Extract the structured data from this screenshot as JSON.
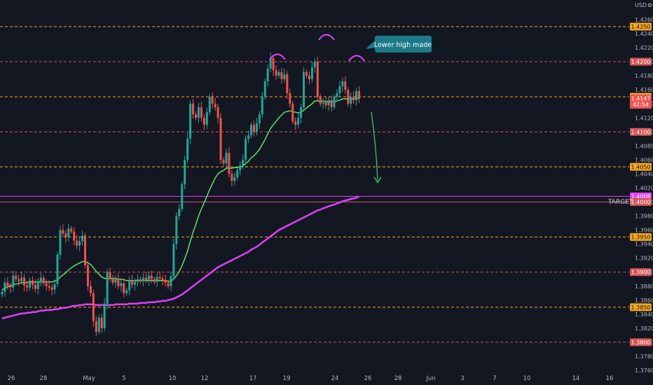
{
  "colors": {
    "background": "#131722",
    "bull": "#26a69a",
    "bear": "#ef5350",
    "ma_fast": "#5ce36b",
    "ma_slow": "#e040fb",
    "orange_level": "#f5a623",
    "red_level": "#d35656",
    "arrow": "#45d16a",
    "callout": "#1b7a88"
  },
  "axis": {
    "currency": "USD",
    "y_ticks": [
      "1.4260",
      "1.4240",
      "1.4220",
      "1.4200",
      "1.4180",
      "1.4160",
      "1.4140",
      "1.4120",
      "1.4100",
      "1.4080",
      "1.4060",
      "1.4040",
      "1.4020",
      "1.4000",
      "1.3980",
      "1.3960",
      "1.3940",
      "1.3920",
      "1.3900",
      "1.3880",
      "1.3860",
      "1.3840",
      "1.3820",
      "1.3800",
      "1.3780",
      "1.3760"
    ],
    "x_ticks": [
      "26",
      "28",
      "May",
      "5",
      "10",
      "12",
      "17",
      "19",
      "24",
      "26",
      "28",
      "Jun",
      "3",
      "7",
      "10",
      "14",
      "16"
    ]
  },
  "chart_data": {
    "type": "line",
    "title": "",
    "xlabel": "",
    "ylabel": "",
    "ylim": [
      1.3752,
      1.4272
    ],
    "symbol_currency": "USD",
    "horizontal_levels": [
      {
        "value": 1.425,
        "label": "1.4250",
        "color": "#f5a623",
        "style": "dashed"
      },
      {
        "value": 1.42,
        "label": "1.4200",
        "color": "#d35656",
        "style": "dashed"
      },
      {
        "value": 1.415,
        "label": "1.4150",
        "color": "#f5a623",
        "style": "dashed"
      },
      {
        "value": 1.41,
        "label": "1.4100",
        "color": "#d35656",
        "style": "dashed"
      },
      {
        "value": 1.405,
        "label": "1.4050",
        "color": "#f5a623",
        "style": "dashed"
      },
      {
        "value": 1.4008,
        "label": "1.4008",
        "color": "#e040fb",
        "style": "solid"
      },
      {
        "value": 1.4,
        "label": "1.4000",
        "color": "#d35656",
        "style": "solid"
      },
      {
        "value": 1.395,
        "label": "1.3950",
        "color": "#f5a623",
        "style": "dashed"
      },
      {
        "value": 1.39,
        "label": "1.3900",
        "color": "#d35656",
        "style": "dashed"
      },
      {
        "value": 1.385,
        "label": "1.3850",
        "color": "#f5a623",
        "style": "dashed"
      },
      {
        "value": 1.38,
        "label": "1.3800",
        "color": "#d35656",
        "style": "dashed"
      }
    ],
    "current_price": {
      "value": "1.4147",
      "countdown": "42:54"
    },
    "target_label": "TARGET",
    "callout_text": "Lower high made",
    "candles_close": [
      1.3872,
      1.3885,
      1.388,
      1.3878,
      1.3895,
      1.389,
      1.3887,
      1.3892,
      1.3881,
      1.3878,
      1.3888,
      1.3882,
      1.3876,
      1.3886,
      1.3892,
      1.3884,
      1.388,
      1.3878,
      1.3875,
      1.3883,
      1.3925,
      1.396,
      1.3955,
      1.395,
      1.3962,
      1.3958,
      1.3945,
      1.3938,
      1.3944,
      1.3952,
      1.391,
      1.388,
      1.387,
      1.383,
      1.3815,
      1.3835,
      1.382,
      1.3855,
      1.39,
      1.3892,
      1.3885,
      1.389,
      1.388,
      1.3884,
      1.387,
      1.3874,
      1.3888,
      1.3882,
      1.3886,
      1.389,
      1.3887,
      1.3892,
      1.3889,
      1.3895,
      1.389,
      1.3886,
      1.3893,
      1.3891,
      1.3889,
      1.3885,
      1.388,
      1.3894,
      1.394,
      1.398,
      1.399,
      1.4025,
      1.406,
      1.409,
      1.414,
      1.4125,
      1.412,
      1.4135,
      1.412,
      1.411,
      1.4128,
      1.415,
      1.414,
      1.4135,
      1.412,
      1.406,
      1.4055,
      1.407,
      1.404,
      1.403,
      1.4035,
      1.4045,
      1.4052,
      1.406,
      1.409,
      1.4095,
      1.411,
      1.41,
      1.4112,
      1.4125,
      1.415,
      1.4172,
      1.419,
      1.4205,
      1.4188,
      1.418,
      1.4185,
      1.4175,
      1.4182,
      1.4155,
      1.414,
      1.4115,
      1.411,
      1.412,
      1.4135,
      1.4185,
      1.418,
      1.4175,
      1.4192,
      1.42,
      1.415,
      1.414,
      1.4142,
      1.4138,
      1.4145,
      1.4135,
      1.415,
      1.4155,
      1.4165,
      1.4172,
      1.416,
      1.414,
      1.415,
      1.4145,
      1.4158,
      1.4147
    ],
    "series": [
      {
        "values": [
          1.3875,
          1.3877,
          1.3879,
          1.3881,
          1.3882,
          1.3883,
          1.3884,
          1.3885,
          1.3885,
          1.3885,
          1.3886,
          1.3886,
          1.3886,
          1.3886,
          1.3886,
          1.3886,
          1.3886,
          1.3886,
          1.3886,
          1.3887,
          1.3889,
          1.3893,
          1.3896,
          1.3899,
          1.3903,
          1.3906,
          1.3909,
          1.3911,
          1.3913,
          1.3915,
          1.3915,
          1.3913,
          1.3911,
          1.3906,
          1.3901,
          1.3897,
          1.3893,
          1.3891,
          1.3891,
          1.3891,
          1.3891,
          1.3891,
          1.389,
          1.389,
          1.3889,
          1.3888,
          1.3888,
          1.3888,
          1.3888,
          1.3888,
          1.3888,
          1.3888,
          1.3888,
          1.3888,
          1.3888,
          1.3888,
          1.3888,
          1.3888,
          1.3888,
          1.3888,
          1.3887,
          1.3887,
          1.389,
          1.3895,
          1.3901,
          1.3909,
          1.3919,
          1.393,
          1.3944,
          1.3957,
          1.3968,
          1.398,
          1.399,
          1.3999,
          1.4008,
          1.4018,
          1.4026,
          1.4034,
          1.404,
          1.4043,
          1.4045,
          1.4048,
          1.4048,
          1.4048,
          1.4049,
          1.4049,
          1.405,
          1.4051,
          1.4055,
          1.4058,
          1.4063,
          1.4066,
          1.407,
          1.4075,
          1.4082,
          1.4089,
          1.4097,
          1.4105,
          1.411,
          1.4115,
          1.412,
          1.4124,
          1.4128,
          1.4129,
          1.413,
          1.4129,
          1.4128,
          1.4127,
          1.4128,
          1.4131,
          1.4134,
          1.4137,
          1.414,
          1.4144,
          1.4144,
          1.4144,
          1.4144,
          1.4143,
          1.4143,
          1.4143,
          1.4143,
          1.4144,
          1.4145,
          1.4147,
          1.4147,
          1.4147,
          1.4147,
          1.4147,
          1.4148,
          1.4148
        ]
      },
      {
        "values": [
          1.3834,
          1.3835,
          1.3836,
          1.3837,
          1.3838,
          1.3839,
          1.384,
          1.3841,
          1.3841,
          1.3842,
          1.3842,
          1.3843,
          1.3843,
          1.3844,
          1.3845,
          1.3845,
          1.3846,
          1.3846,
          1.3846,
          1.3847,
          1.3847,
          1.3848,
          1.3849,
          1.3849,
          1.385,
          1.3851,
          1.3852,
          1.3852,
          1.3853,
          1.3853,
          1.3854,
          1.3854,
          1.3854,
          1.3854,
          1.3853,
          1.3853,
          1.3853,
          1.3853,
          1.3853,
          1.3853,
          1.3853,
          1.3854,
          1.3854,
          1.3854,
          1.3854,
          1.3854,
          1.3855,
          1.3855,
          1.3855,
          1.3855,
          1.3856,
          1.3856,
          1.3856,
          1.3857,
          1.3857,
          1.3857,
          1.3858,
          1.3858,
          1.3859,
          1.3859,
          1.386,
          1.3861,
          1.3862,
          1.3864,
          1.3866,
          1.3868,
          1.3871,
          1.3874,
          1.3877,
          1.388,
          1.3883,
          1.3886,
          1.3889,
          1.3892,
          1.3895,
          1.3898,
          1.3901,
          1.3904,
          1.3907,
          1.3909,
          1.3911,
          1.3913,
          1.3915,
          1.3917,
          1.3919,
          1.3921,
          1.3923,
          1.3925,
          1.3927,
          1.3929,
          1.3932,
          1.3934,
          1.3936,
          1.3939,
          1.3942,
          1.3945,
          1.3948,
          1.3951,
          1.3954,
          1.3957,
          1.396,
          1.3962,
          1.3964,
          1.3966,
          1.3968,
          1.397,
          1.3972,
          1.3974,
          1.3976,
          1.3978,
          1.398,
          1.3982,
          1.3984,
          1.3986,
          1.3988,
          1.3989,
          1.3991,
          1.3992,
          1.3994,
          1.3995,
          1.3996,
          1.3998,
          1.3999,
          1.4001,
          1.4002,
          1.4003,
          1.4004,
          1.4005,
          1.4006,
          1.4008
        ]
      }
    ],
    "grid": false
  }
}
